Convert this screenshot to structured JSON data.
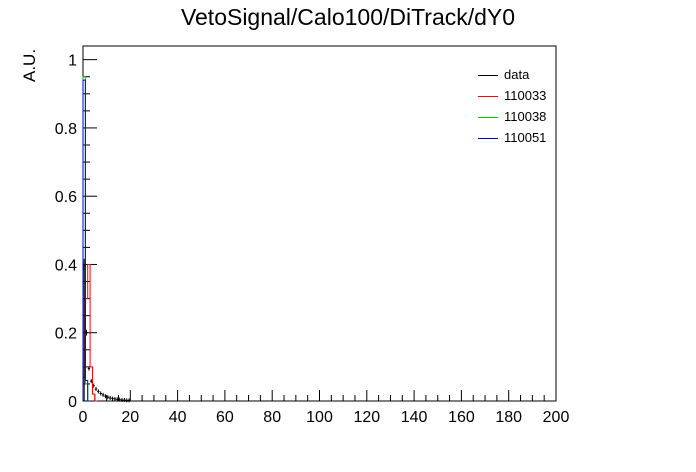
{
  "chart_data": {
    "type": "line",
    "title": "VetoSignal/Calo100/DiTrack/dY0",
    "xlabel": "",
    "ylabel": "A.U.",
    "xlim": [
      0,
      200
    ],
    "ylim": [
      0,
      1.04
    ],
    "xticks": [
      "0",
      "20",
      "40",
      "60",
      "80",
      "100",
      "120",
      "140",
      "160",
      "180",
      "200"
    ],
    "yticks": [
      "0",
      "0.2",
      "0.4",
      "0.6",
      "0.8",
      "1"
    ],
    "legend_position": "top-right",
    "grid": false,
    "bin_width": 1,
    "series": [
      {
        "name": "data",
        "color": "#000000",
        "style": "points-with-errors",
        "x": [
          0.5,
          1.5,
          2.5,
          3.5,
          4.5,
          5.5,
          6.5,
          7.5,
          8.5,
          9.5,
          10.5,
          11.5,
          12.5,
          13.5,
          14.5,
          15.5,
          16.5,
          17.5,
          18.5,
          19.5
        ],
        "y": [
          0.4,
          0.2,
          0.095,
          0.058,
          0.045,
          0.035,
          0.028,
          0.022,
          0.018,
          0.014,
          0.011,
          0.009,
          0.007,
          0.006,
          0.005,
          0.004,
          0.003,
          0.003,
          0.002,
          0.002
        ]
      },
      {
        "name": "110033",
        "color": "#ff0000",
        "style": "step",
        "x": [
          0.5,
          1.5,
          2.5,
          3.5,
          4.5,
          5.5
        ],
        "y": [
          0.07,
          0.3,
          0.4,
          0.1,
          0.02,
          0.0
        ]
      },
      {
        "name": "110038",
        "color": "#00cc00",
        "style": "step",
        "x": [
          0.5,
          1.5,
          2.5
        ],
        "y": [
          0.95,
          0.05,
          0.0
        ]
      },
      {
        "name": "110051",
        "color": "#0000cc",
        "style": "step",
        "x": [
          0.5,
          1.5,
          2.5
        ],
        "y": [
          0.94,
          0.06,
          0.0
        ]
      }
    ]
  }
}
